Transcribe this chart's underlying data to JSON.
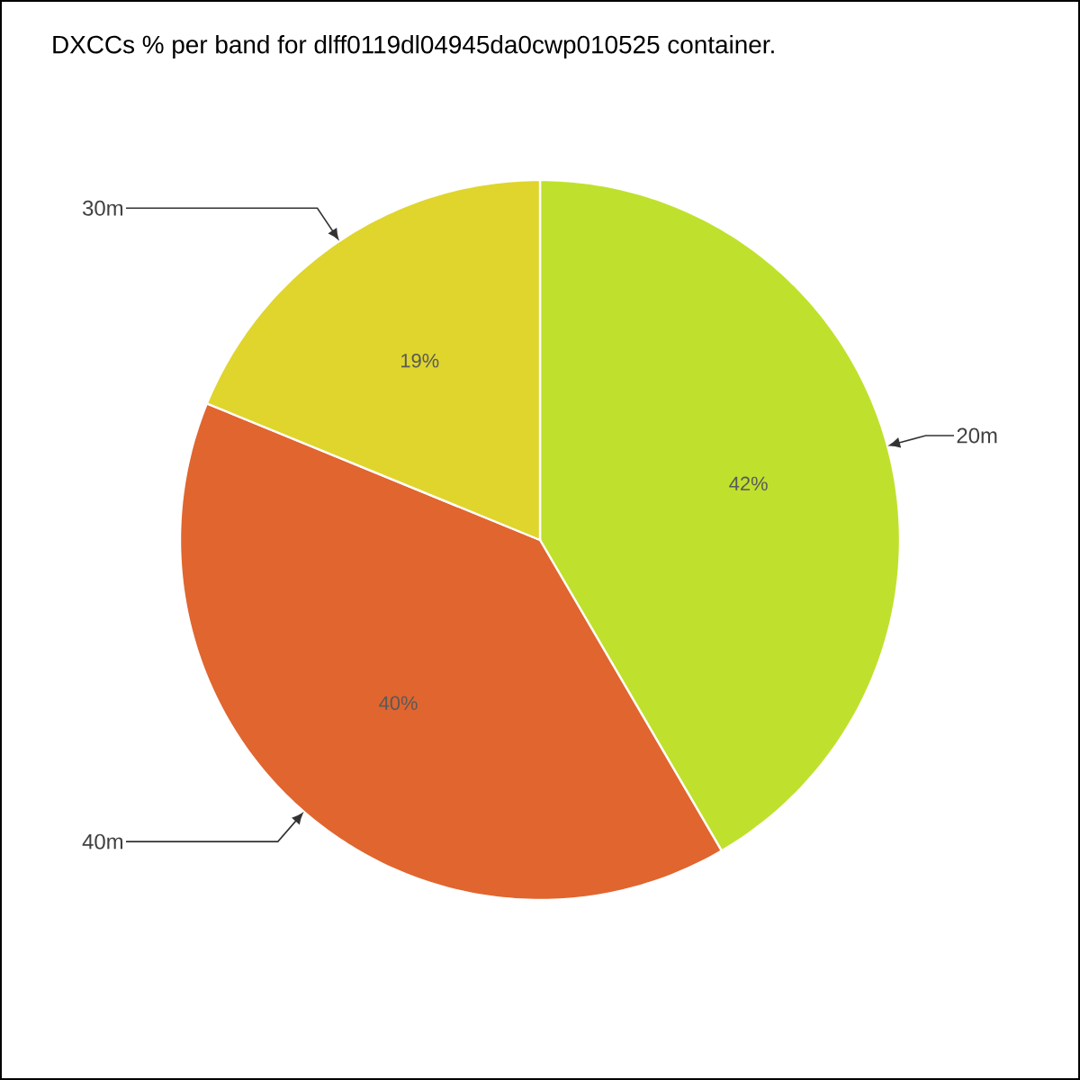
{
  "chart_data": {
    "type": "pie",
    "title": "DXCCs % per band for dlff0119dl04945da0cwp010525 container.",
    "categories": [
      "20m",
      "40m",
      "30m"
    ],
    "values": [
      42,
      40,
      19
    ],
    "value_labels": [
      "42%",
      "40%",
      "19%"
    ],
    "colors": [
      "#bfe12d",
      "#e1652f",
      "#dfd52d"
    ]
  }
}
